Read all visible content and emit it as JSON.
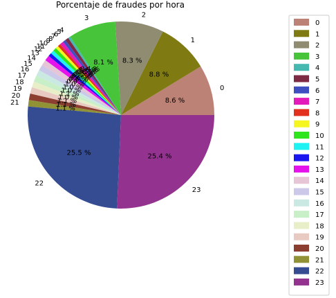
{
  "chart_data": {
    "type": "pie",
    "title": "Porcentaje de fraudes por hora",
    "categories": [
      "0",
      "1",
      "2",
      "3",
      "4",
      "5",
      "6",
      "7",
      "8",
      "9",
      "10",
      "11",
      "12",
      "13",
      "14",
      "15",
      "16",
      "17",
      "18",
      "19",
      "20",
      "21",
      "22",
      "23"
    ],
    "values": [
      8.6,
      8.8,
      8.3,
      8.1,
      0.4,
      0.6,
      0.5,
      0.6,
      0.5,
      0.5,
      0.6,
      0.6,
      0.6,
      0.9,
      1.0,
      1.0,
      1.0,
      1.1,
      1.0,
      1.1,
      1.1,
      1.1,
      25.5,
      25.4
    ],
    "percent_labels": [
      "8.6 %",
      "8.8 %",
      "8.3 %",
      "8.1 %",
      "0.4 %",
      "0.6 %",
      "0.5 %",
      "0.6 %",
      "0.5 %",
      "0.5 %",
      "0.6 %",
      "0.6 %",
      "0.6 %",
      "0.9 %",
      "1.0 %",
      "1.0 %",
      "1.0 %",
      "1.1 %",
      "1.0 %",
      "1.1 %",
      "1.1 %",
      "1.1 %",
      "25.5 %",
      "25.4 %"
    ],
    "colors": [
      "#bc8275",
      "#7f7b12",
      "#8f8c72",
      "#48c43a",
      "#45b8b0",
      "#7f2a44",
      "#3f4fc2",
      "#e31bba",
      "#e2321f",
      "#f5f51f",
      "#30e51e",
      "#1ef2f2",
      "#1a16f0",
      "#e512ec",
      "#e5c5d6",
      "#ccc8ea",
      "#c9e9e2",
      "#c9efc9",
      "#e8efc8",
      "#e9cac3",
      "#8c3f31",
      "#919135",
      "#354c93",
      "#94338f"
    ],
    "start_angle_deg": 0,
    "direction": "counterclockwise",
    "legend_position": "right"
  }
}
